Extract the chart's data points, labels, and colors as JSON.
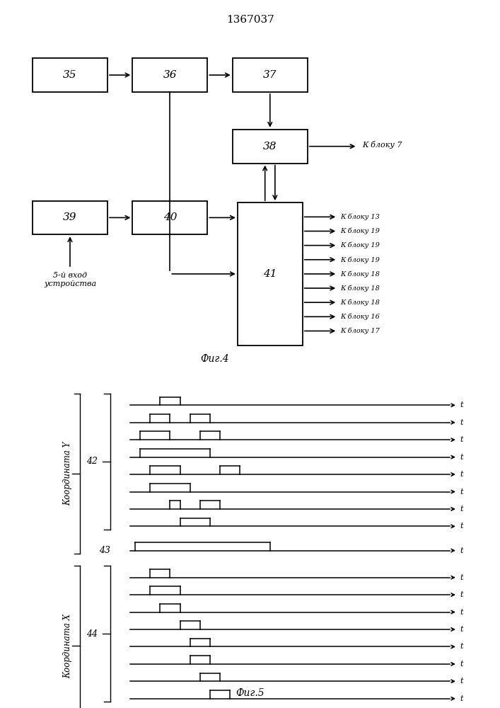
{
  "title": "1367037",
  "fig4_label": "Фиг.4",
  "fig5_label": "Фиг.5",
  "output_labels_fig4": [
    "К блоку 13",
    "К блоку 19",
    "К блоку 19",
    "К блоку 19",
    "К блоку 18",
    "К блоку 18",
    "К блоку 18",
    "К блоку 16",
    "К блоку 17"
  ],
  "label_5vhod": "5-й вход\nустройства",
  "label_k_bloku7": "К блоку 7",
  "coord_Y_label": "Координата Y",
  "coord_X_label": "Координата X",
  "label_42": "42",
  "label_43": "43",
  "label_44": "44"
}
